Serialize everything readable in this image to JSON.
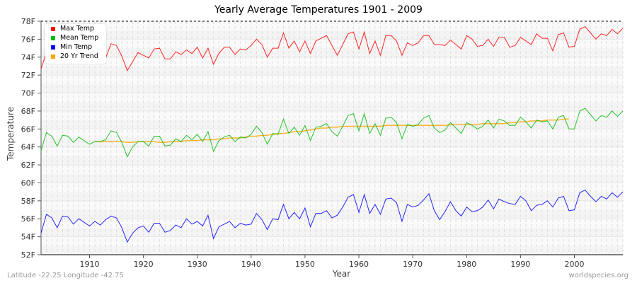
{
  "chart_data": {
    "type": "line",
    "title": "Yearly Average Temperatures 1901 - 2009",
    "xlabel": "Year",
    "ylabel": "Temperature",
    "xlim": [
      1901,
      2009
    ],
    "ylim": [
      52,
      78
    ],
    "x_ticks": [
      "1910",
      "1920",
      "1930",
      "1940",
      "1950",
      "1960",
      "1970",
      "1980",
      "1990",
      "2000"
    ],
    "y_ticks": [
      "52F",
      "54F",
      "56F",
      "58F",
      "60F",
      "62F",
      "64F",
      "66F",
      "68F",
      "70F",
      "72F",
      "74F",
      "76F",
      "78F"
    ],
    "grid": true,
    "legend_position": "top-left",
    "series": [
      {
        "name": "Max Temp",
        "color": "#ff0000",
        "start_year": 1901,
        "values": [
          72.7,
          74.5,
          75.2,
          74.0,
          75.4,
          75.3,
          74.2,
          75.0,
          74.6,
          74.3,
          74.8,
          74.6,
          73.9,
          75.5,
          75.3,
          74.1,
          72.5,
          73.5,
          74.5,
          74.2,
          73.9,
          74.9,
          75.0,
          73.8,
          73.8,
          74.6,
          74.3,
          74.8,
          74.4,
          75.1,
          73.9,
          75.0,
          73.2,
          74.4,
          75.1,
          75.1,
          74.3,
          74.9,
          74.8,
          75.3,
          76.0,
          75.4,
          74.0,
          75.0,
          75.0,
          76.7,
          75.0,
          75.8,
          74.6,
          75.8,
          74.4,
          75.8,
          76.1,
          76.4,
          75.3,
          74.2,
          75.4,
          76.6,
          76.8,
          74.9,
          76.8,
          74.4,
          75.8,
          74.2,
          76.4,
          76.4,
          75.8,
          74.2,
          75.6,
          75.3,
          75.6,
          76.4,
          76.4,
          75.4,
          75.4,
          75.3,
          75.9,
          75.4,
          74.9,
          76.4,
          76.0,
          75.2,
          75.3,
          76.0,
          75.2,
          76.2,
          76.2,
          75.1,
          75.3,
          76.2,
          75.8,
          75.4,
          76.6,
          76.1,
          76.1,
          74.7,
          76.5,
          76.7,
          75.1,
          75.2,
          77.1,
          77.4,
          76.7,
          76.0,
          76.6,
          76.4,
          77.1,
          76.6,
          77.2
        ]
      },
      {
        "name": "Mean Temp",
        "color": "#00bb00",
        "start_year": 1901,
        "values": [
          63.6,
          65.6,
          65.2,
          64.1,
          65.3,
          65.2,
          64.5,
          65.1,
          64.7,
          64.3,
          64.6,
          64.6,
          64.8,
          65.8,
          65.6,
          64.5,
          62.9,
          64.0,
          64.6,
          64.6,
          64.1,
          65.2,
          65.2,
          64.1,
          64.2,
          64.9,
          64.6,
          65.3,
          64.8,
          65.4,
          64.6,
          65.7,
          63.5,
          64.7,
          65.1,
          65.3,
          64.6,
          65.1,
          65.0,
          65.4,
          66.3,
          65.6,
          64.3,
          65.5,
          65.4,
          67.1,
          65.5,
          66.2,
          65.3,
          66.4,
          64.7,
          66.2,
          66.3,
          66.6,
          65.7,
          65.2,
          66.3,
          67.5,
          67.7,
          65.8,
          67.7,
          65.5,
          66.6,
          65.3,
          67.2,
          67.3,
          66.7,
          64.9,
          66.5,
          66.3,
          66.5,
          67.2,
          67.5,
          66.1,
          65.6,
          65.9,
          66.7,
          66.1,
          65.5,
          66.7,
          66.4,
          66.0,
          66.3,
          67.0,
          66.1,
          67.1,
          66.9,
          66.4,
          66.4,
          67.3,
          66.8,
          66.1,
          67.0,
          66.8,
          66.9,
          66.0,
          67.3,
          67.5,
          66.0,
          66.0,
          68.0,
          68.3,
          67.6,
          66.9,
          67.5,
          67.3,
          68.0,
          67.4,
          68.0
        ]
      },
      {
        "name": "Min Temp",
        "color": "#0000ff",
        "start_year": 1901,
        "values": [
          54.4,
          56.5,
          56.1,
          55.0,
          56.3,
          56.2,
          55.4,
          56.0,
          55.6,
          55.2,
          55.7,
          55.3,
          55.9,
          56.3,
          56.1,
          55.0,
          53.4,
          54.4,
          55.0,
          55.2,
          54.5,
          55.5,
          55.5,
          54.5,
          54.7,
          55.3,
          55.0,
          56.0,
          55.4,
          55.7,
          55.2,
          56.4,
          53.8,
          55.1,
          55.4,
          55.7,
          55.0,
          55.5,
          55.3,
          55.4,
          56.6,
          55.9,
          54.8,
          56.0,
          55.9,
          57.6,
          56.0,
          56.7,
          56.0,
          57.2,
          55.1,
          56.6,
          56.6,
          56.9,
          56.1,
          56.4,
          57.3,
          58.4,
          58.7,
          56.7,
          58.7,
          56.6,
          57.6,
          56.5,
          58.2,
          58.3,
          57.8,
          55.7,
          57.6,
          57.3,
          57.5,
          58.1,
          58.8,
          56.9,
          55.9,
          56.8,
          57.9,
          56.9,
          56.3,
          57.3,
          56.8,
          56.9,
          57.3,
          58.1,
          57.1,
          58.2,
          57.9,
          57.7,
          57.6,
          58.5,
          58.0,
          56.9,
          57.5,
          57.6,
          58.0,
          57.3,
          58.3,
          58.5,
          56.9,
          57.0,
          58.9,
          59.2,
          58.5,
          57.9,
          58.5,
          58.2,
          58.9,
          58.4,
          59.0
        ]
      },
      {
        "name": "20 Yr Trend",
        "color": "#ffa500",
        "start_year": 1911,
        "values": [
          64.6,
          64.6,
          64.6,
          64.6,
          64.6,
          64.6,
          64.5,
          64.5,
          64.6,
          64.6,
          64.6,
          64.6,
          64.5,
          64.5,
          64.6,
          64.6,
          64.6,
          64.7,
          64.7,
          64.7,
          64.8,
          64.8,
          64.8,
          64.9,
          64.9,
          65.0,
          65.0,
          65.0,
          65.1,
          65.2,
          65.2,
          65.3,
          65.3,
          65.4,
          65.5,
          65.5,
          65.6,
          65.7,
          65.7,
          65.8,
          65.9,
          66.0,
          66.1,
          66.1,
          66.2,
          66.2,
          66.3,
          66.3,
          66.3,
          66.3,
          66.3,
          66.3,
          66.3,
          66.3,
          66.4,
          66.4,
          66.4,
          66.4,
          66.4,
          66.4,
          66.4,
          66.4,
          66.4,
          66.4,
          66.4,
          66.4,
          66.5,
          66.5,
          66.5,
          66.5,
          66.5,
          66.5,
          66.6,
          66.6,
          66.6,
          66.6,
          66.6,
          66.7,
          66.7,
          66.8,
          66.8,
          66.9,
          66.9,
          66.9,
          67.0,
          67.0,
          67.0,
          67.1,
          67.1
        ]
      }
    ]
  },
  "footer": {
    "location": "Latitude -22.25 Longitude -42.75",
    "source": "worldspecies.org"
  }
}
